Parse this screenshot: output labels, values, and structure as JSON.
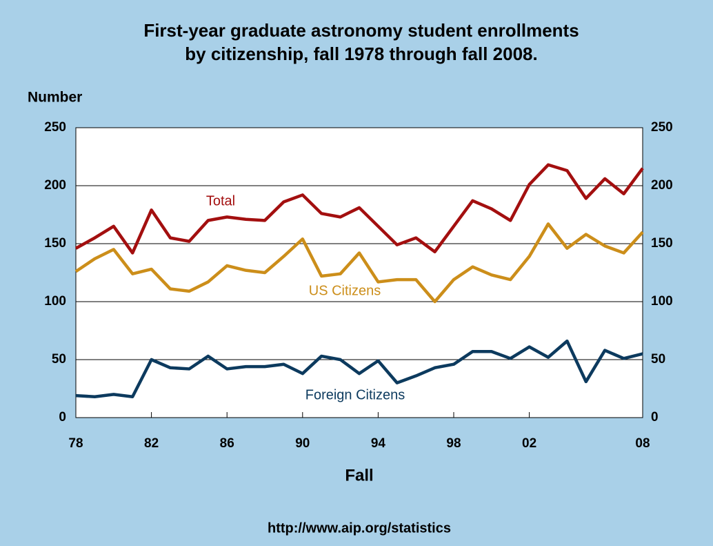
{
  "chart_data": {
    "type": "line",
    "title": [
      "First-year graduate astronomy student enrollments",
      "by citizenship, fall 1978 through fall 2008."
    ],
    "ylabel": "Number",
    "xlabel": "Fall",
    "source": "http://www.aip.org/statistics",
    "x": [
      1978,
      1979,
      1980,
      1981,
      1982,
      1983,
      1984,
      1985,
      1986,
      1987,
      1988,
      1989,
      1990,
      1991,
      1992,
      1993,
      1994,
      1995,
      1996,
      1997,
      1998,
      1999,
      2000,
      2001,
      2002,
      2003,
      2004,
      2005,
      2006,
      2007,
      2008
    ],
    "series": [
      {
        "name": "Total",
        "color": "#a30f0f",
        "values": [
          146,
          155,
          165,
          142,
          179,
          155,
          152,
          170,
          173,
          171,
          170,
          186,
          192,
          176,
          173,
          181,
          165,
          149,
          155,
          143,
          165,
          187,
          180,
          170,
          201,
          218,
          213,
          189,
          206,
          193,
          215
        ]
      },
      {
        "name": "US Citizens",
        "color": "#cc8e1a",
        "values": [
          126,
          137,
          145,
          124,
          128,
          111,
          109,
          117,
          131,
          127,
          125,
          139,
          154,
          122,
          124,
          142,
          117,
          119,
          119,
          100,
          119,
          130,
          123,
          119,
          139,
          167,
          146,
          158,
          148,
          142,
          160
        ]
      },
      {
        "name": "Foreign Citizens",
        "color": "#0c3a5e",
        "values": [
          19,
          18,
          20,
          18,
          50,
          43,
          42,
          53,
          42,
          44,
          44,
          46,
          38,
          53,
          50,
          38,
          49,
          30,
          36,
          43,
          46,
          57,
          57,
          51,
          61,
          52,
          66,
          31,
          58,
          51,
          55
        ]
      }
    ],
    "xlim": [
      1978,
      2008
    ],
    "xticks": [
      {
        "value": 1978,
        "label": "78"
      },
      {
        "value": 1982,
        "label": "82"
      },
      {
        "value": 1986,
        "label": "86"
      },
      {
        "value": 1990,
        "label": "90"
      },
      {
        "value": 1994,
        "label": "94"
      },
      {
        "value": 1998,
        "label": "98"
      },
      {
        "value": 2002,
        "label": "02"
      },
      {
        "value": 2008,
        "label": "08"
      }
    ],
    "ylim": [
      0,
      250
    ],
    "yticks": [
      0,
      50,
      100,
      150,
      200,
      250
    ],
    "grid": true
  }
}
